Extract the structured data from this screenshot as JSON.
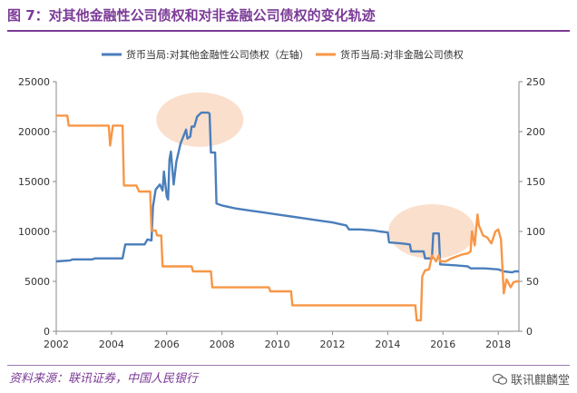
{
  "title": "图 7：对其他金融性公司债权和对非金融公司债权的变化轨迹",
  "source": "资料来源：联讯证券，中国人民银行",
  "watermark": "联讯麒麟堂",
  "chart_data": {
    "type": "line",
    "title": "",
    "xlabel": "",
    "ylabel": "",
    "x_range": [
      2002,
      2018.75
    ],
    "x_ticks": [
      "2002",
      "2004",
      "2006",
      "2008",
      "2010",
      "2012",
      "2014",
      "2016",
      "2018"
    ],
    "y_left_range": [
      0,
      25000
    ],
    "y_left_ticks": [
      "0",
      "5000",
      "10000",
      "15000",
      "20000",
      "25000"
    ],
    "y_right_range": [
      0,
      250
    ],
    "y_right_ticks": [
      "0",
      "50",
      "100",
      "150",
      "200",
      "250"
    ],
    "grid": false,
    "legend_position": "top",
    "highlight_ellipses": [
      {
        "x_center": 2007.2,
        "y_center_left": 21200
      },
      {
        "x_center": 2015.6,
        "y_center_left": 10000
      }
    ],
    "series": [
      {
        "name": "货币当局:对其他金融性公司债权（左轴）",
        "axis": "left",
        "color": "#4a7ebb",
        "points": [
          [
            2002.0,
            7000
          ],
          [
            2002.5,
            7100
          ],
          [
            2002.6,
            7200
          ],
          [
            2003.3,
            7200
          ],
          [
            2003.4,
            7300
          ],
          [
            2004.4,
            7300
          ],
          [
            2004.5,
            8700
          ],
          [
            2005.2,
            8700
          ],
          [
            2005.3,
            9200
          ],
          [
            2005.45,
            9100
          ],
          [
            2005.5,
            12500
          ],
          [
            2005.6,
            14200
          ],
          [
            2005.75,
            14700
          ],
          [
            2005.85,
            14100
          ],
          [
            2005.9,
            16000
          ],
          [
            2006.0,
            13500
          ],
          [
            2006.05,
            13200
          ],
          [
            2006.1,
            17200
          ],
          [
            2006.15,
            18000
          ],
          [
            2006.25,
            14700
          ],
          [
            2006.35,
            17000
          ],
          [
            2006.5,
            18800
          ],
          [
            2006.7,
            20200
          ],
          [
            2006.75,
            19300
          ],
          [
            2006.85,
            19500
          ],
          [
            2006.9,
            20500
          ],
          [
            2007.0,
            20500
          ],
          [
            2007.1,
            21500
          ],
          [
            2007.25,
            21900
          ],
          [
            2007.5,
            21900
          ],
          [
            2007.55,
            21800
          ],
          [
            2007.6,
            17900
          ],
          [
            2007.75,
            17900
          ],
          [
            2007.8,
            12800
          ],
          [
            2008.0,
            12600
          ],
          [
            2008.5,
            12300
          ],
          [
            2009.0,
            12100
          ],
          [
            2009.5,
            11900
          ],
          [
            2010.0,
            11700
          ],
          [
            2010.5,
            11500
          ],
          [
            2011.0,
            11300
          ],
          [
            2011.5,
            11100
          ],
          [
            2012.0,
            10900
          ],
          [
            2012.5,
            10600
          ],
          [
            2012.6,
            10200
          ],
          [
            2013.0,
            10200
          ],
          [
            2013.5,
            10100
          ],
          [
            2013.7,
            10000
          ],
          [
            2014.0,
            9900
          ],
          [
            2014.05,
            8900
          ],
          [
            2014.5,
            8800
          ],
          [
            2014.8,
            8700
          ],
          [
            2014.85,
            8000
          ],
          [
            2015.3,
            8000
          ],
          [
            2015.35,
            7300
          ],
          [
            2015.6,
            7300
          ],
          [
            2015.65,
            9800
          ],
          [
            2015.85,
            9800
          ],
          [
            2015.9,
            6700
          ],
          [
            2016.5,
            6600
          ],
          [
            2016.9,
            6500
          ],
          [
            2017.0,
            6300
          ],
          [
            2017.5,
            6300
          ],
          [
            2018.0,
            6200
          ],
          [
            2018.2,
            6000
          ],
          [
            2018.5,
            5900
          ],
          [
            2018.6,
            6000
          ],
          [
            2018.75,
            6000
          ]
        ]
      },
      {
        "name": "货币当局:对非金融公司债权",
        "axis": "right",
        "color": "#f79646",
        "points": [
          [
            2002.0,
            216
          ],
          [
            2002.4,
            216
          ],
          [
            2002.45,
            206
          ],
          [
            2003.9,
            206
          ],
          [
            2003.95,
            186
          ],
          [
            2004.05,
            206
          ],
          [
            2004.4,
            206
          ],
          [
            2004.45,
            146
          ],
          [
            2004.9,
            146
          ],
          [
            2005.0,
            140
          ],
          [
            2005.4,
            140
          ],
          [
            2005.45,
            101
          ],
          [
            2005.6,
            101
          ],
          [
            2005.65,
            96
          ],
          [
            2005.8,
            96
          ],
          [
            2005.85,
            65
          ],
          [
            2006.9,
            65
          ],
          [
            2006.95,
            60
          ],
          [
            2007.6,
            60
          ],
          [
            2007.65,
            44
          ],
          [
            2009.7,
            44
          ],
          [
            2009.75,
            40
          ],
          [
            2010.5,
            40
          ],
          [
            2010.55,
            26
          ],
          [
            2014.6,
            26
          ],
          [
            2015.0,
            26
          ],
          [
            2015.05,
            11
          ],
          [
            2015.2,
            11
          ],
          [
            2015.25,
            55
          ],
          [
            2015.35,
            61
          ],
          [
            2015.5,
            62
          ],
          [
            2015.6,
            76
          ],
          [
            2015.75,
            70
          ],
          [
            2015.85,
            76
          ],
          [
            2015.9,
            70
          ],
          [
            2016.1,
            70
          ],
          [
            2016.3,
            73
          ],
          [
            2016.5,
            75
          ],
          [
            2016.7,
            77
          ],
          [
            2016.9,
            78
          ],
          [
            2017.0,
            80
          ],
          [
            2017.05,
            100
          ],
          [
            2017.15,
            86
          ],
          [
            2017.25,
            117
          ],
          [
            2017.3,
            106
          ],
          [
            2017.45,
            96
          ],
          [
            2017.6,
            94
          ],
          [
            2017.75,
            88
          ],
          [
            2017.9,
            100
          ],
          [
            2018.0,
            102
          ],
          [
            2018.1,
            92
          ],
          [
            2018.2,
            38
          ],
          [
            2018.3,
            52
          ],
          [
            2018.45,
            44
          ],
          [
            2018.55,
            49
          ],
          [
            2018.65,
            50
          ],
          [
            2018.75,
            50
          ]
        ]
      }
    ]
  }
}
